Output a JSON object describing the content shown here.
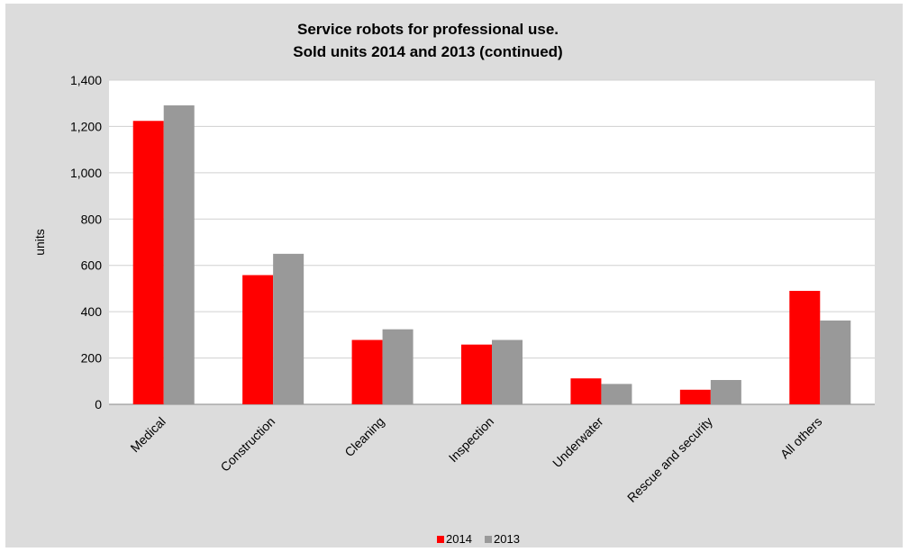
{
  "chart_data": {
    "type": "bar",
    "title": [
      "Service robots for professional use.",
      "Sold units 2014 and 2013 (continued)"
    ],
    "xlabel": "",
    "ylabel": "units",
    "categories": [
      "Medical",
      "Construction",
      "Cleaning",
      "Inspection",
      "Underwater",
      "Rescue and security",
      "All others"
    ],
    "series": [
      {
        "name": "2014",
        "color": "#ff0000",
        "values": [
          1224,
          558,
          278,
          258,
          112,
          63,
          490
        ]
      },
      {
        "name": "2013",
        "color": "#999999",
        "values": [
          1291,
          650,
          324,
          278,
          88,
          105,
          362
        ]
      }
    ],
    "ylim": [
      0,
      1400
    ],
    "yticks": [
      "0",
      "200",
      "400",
      "600",
      "800",
      "1,000",
      "1,200",
      "1,400"
    ],
    "ytick_values": [
      0,
      200,
      400,
      600,
      800,
      1000,
      1200,
      1400
    ],
    "grid": true,
    "legend_position": "bottom-center"
  }
}
